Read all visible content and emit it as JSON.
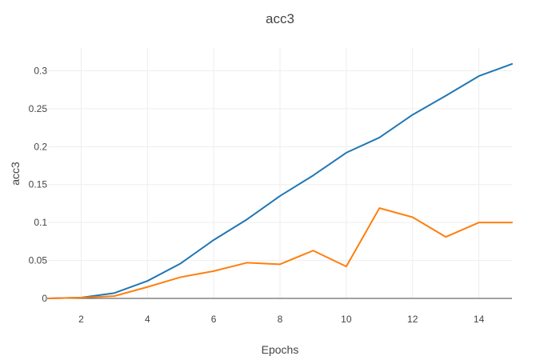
{
  "chart_data": {
    "type": "line",
    "title": "acc3",
    "xlabel": "Epochs",
    "ylabel": "acc3",
    "x": [
      1,
      2,
      3,
      4,
      5,
      6,
      7,
      8,
      9,
      10,
      11,
      12,
      13,
      14,
      15
    ],
    "xlim": [
      1,
      15
    ],
    "ylim": [
      0,
      0.33
    ],
    "x_ticks": [
      2,
      4,
      6,
      8,
      10,
      12,
      14
    ],
    "x_tick_labels": [
      "2",
      "4",
      "6",
      "8",
      "10",
      "12",
      "14"
    ],
    "y_ticks": [
      0,
      0.05,
      0.1,
      0.15,
      0.2,
      0.25,
      0.3
    ],
    "y_tick_labels": [
      "0",
      "0.05",
      "0.1",
      "0.15",
      "0.2",
      "0.25",
      "0.3"
    ],
    "grid": true,
    "legend": "none",
    "series": [
      {
        "color": "#1f77b4",
        "values": [
          0.0,
          0.001,
          0.007,
          0.023,
          0.046,
          0.077,
          0.104,
          0.135,
          0.162,
          0.192,
          0.212,
          0.242,
          0.267,
          0.293,
          0.309
        ]
      },
      {
        "color": "#ff7f0e",
        "values": [
          0.0,
          0.001,
          0.003,
          0.015,
          0.028,
          0.036,
          0.047,
          0.045,
          0.063,
          0.042,
          0.119,
          0.107,
          0.081,
          0.1,
          0.1
        ]
      }
    ]
  }
}
